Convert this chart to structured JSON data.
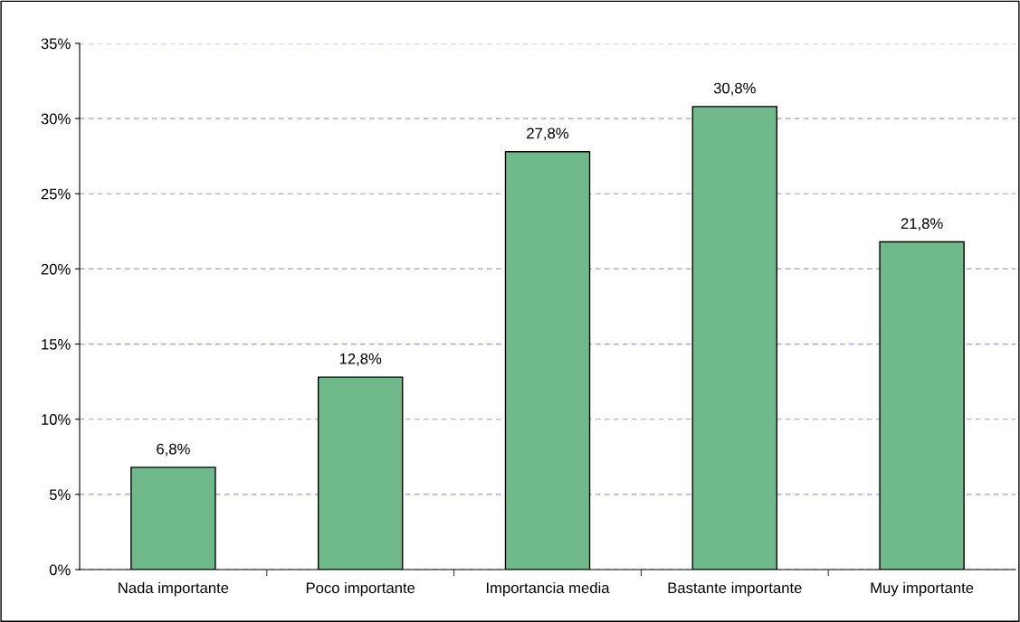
{
  "chart_data": {
    "type": "bar",
    "categories": [
      "Nada importante",
      "Poco importante",
      "Importancia media",
      "Bastante importante",
      "Muy importante"
    ],
    "values": [
      6.8,
      12.8,
      27.8,
      30.8,
      21.8
    ],
    "value_labels": [
      "6,8%",
      "12,8%",
      "27,8%",
      "30,8%",
      "21,8%"
    ],
    "color": "#6fb98a",
    "ylim": [
      0,
      35
    ],
    "yticks": [
      {
        "value": 0,
        "label": "0%"
      },
      {
        "value": 5,
        "label": "5%"
      },
      {
        "value": 10,
        "label": "10%"
      },
      {
        "value": 15,
        "label": "15%"
      },
      {
        "value": 20,
        "label": "20%"
      },
      {
        "value": 25,
        "label": "25%"
      },
      {
        "value": 30,
        "label": "30%"
      },
      {
        "value": 35,
        "label": "35%"
      }
    ],
    "grid": "y"
  }
}
